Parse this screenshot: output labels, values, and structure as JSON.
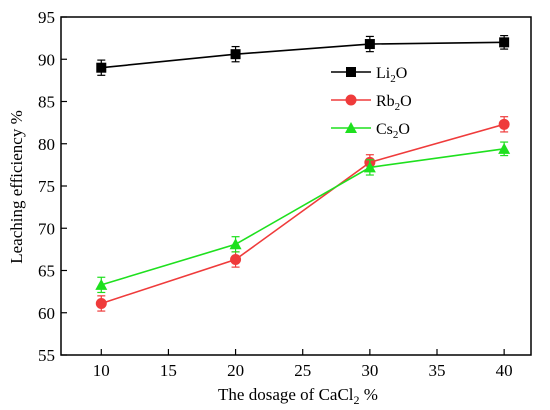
{
  "chart_data": {
    "type": "line",
    "xlabel": "The dosage of CaCl",
    "xlabel_sub": "2",
    "xlabel_suffix": " %",
    "ylabel": "Leaching efficiency %",
    "xlim": [
      7,
      42
    ],
    "ylim": [
      55,
      95
    ],
    "x_ticks": [
      10,
      15,
      20,
      25,
      30,
      35,
      40
    ],
    "y_ticks": [
      55,
      60,
      65,
      70,
      75,
      80,
      85,
      90,
      95
    ],
    "x": [
      10,
      20,
      30,
      40
    ],
    "legend_position": "right",
    "series": [
      {
        "name": "Li",
        "sub": "2",
        "suffix": "O",
        "color": "#000000",
        "marker": "square",
        "values": [
          89.0,
          90.6,
          91.8,
          92.0
        ],
        "errors": [
          0.9,
          0.9,
          0.9,
          0.8
        ]
      },
      {
        "name": "Rb",
        "sub": "2",
        "suffix": "O",
        "color": "#ef3b3b",
        "marker": "circle",
        "values": [
          61.1,
          66.3,
          77.8,
          82.3
        ],
        "errors": [
          0.9,
          0.9,
          0.9,
          0.9
        ]
      },
      {
        "name": "Cs",
        "sub": "2",
        "suffix": "O",
        "color": "#1ee01e",
        "marker": "triangle",
        "values": [
          63.3,
          68.1,
          77.2,
          79.4
        ],
        "errors": [
          0.9,
          0.9,
          0.9,
          0.8
        ]
      }
    ]
  }
}
